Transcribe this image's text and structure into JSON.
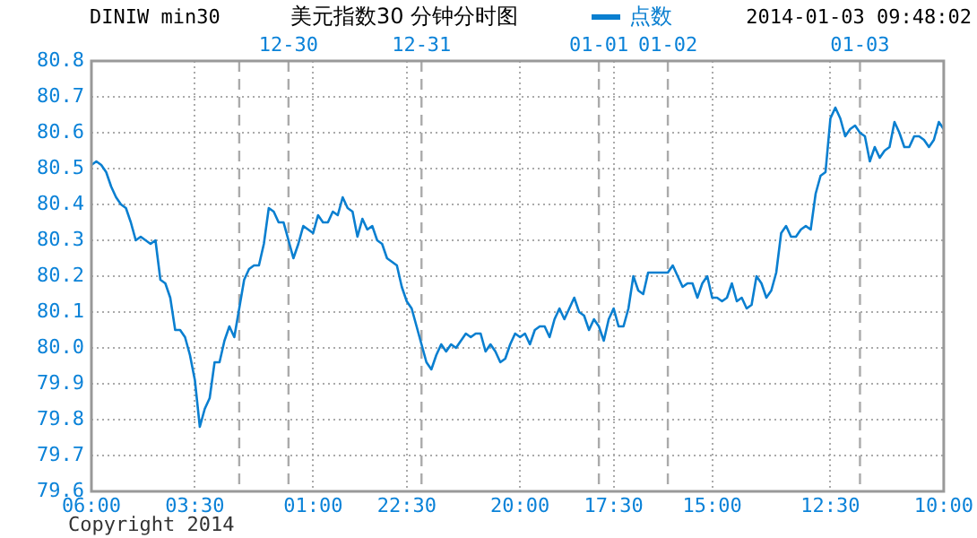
{
  "chart_data": {
    "type": "line",
    "title": "美元指数30  分钟分时图",
    "subtitle": "DINIW min30",
    "legend": "top",
    "grid": true,
    "marker": "none",
    "line_style": "solid",
    "categories": [
      "06:00",
      null,
      null,
      null,
      null,
      null,
      null,
      null,
      null,
      null,
      null,
      null,
      null,
      null,
      null,
      null,
      null,
      null,
      null,
      null,
      null,
      "03:30",
      null,
      null,
      null,
      null,
      null,
      null,
      null,
      null,
      null,
      null,
      null,
      null,
      null,
      null,
      null,
      null,
      null,
      null,
      null,
      null,
      null,
      null,
      null,
      "01:00",
      null,
      null,
      null,
      null,
      null,
      null,
      null,
      null,
      null,
      null,
      null,
      null,
      null,
      null,
      null,
      null,
      null,
      null,
      "22:30",
      null,
      null,
      null,
      null,
      null,
      null,
      null,
      null,
      null,
      null,
      null,
      null,
      null,
      null,
      null,
      null,
      null,
      null,
      null,
      null,
      null,
      null,
      "20:00",
      null,
      null,
      null,
      null,
      null,
      null,
      null,
      null,
      null,
      null,
      null,
      null,
      null,
      null,
      null,
      null,
      null,
      null,
      "17:30",
      null,
      null,
      null,
      null,
      null,
      null,
      null,
      null,
      null,
      null,
      null,
      null,
      null,
      null,
      null,
      null,
      null,
      null,
      null,
      "15:00",
      null,
      null,
      null,
      null,
      null,
      null,
      null,
      null,
      null,
      null,
      null,
      null,
      null,
      null,
      null,
      null,
      null,
      null,
      null,
      null,
      null,
      null,
      null,
      "12:30",
      null,
      null,
      null,
      null,
      null,
      null,
      null,
      null,
      null,
      null,
      null,
      null,
      null,
      null,
      null,
      null,
      null,
      null,
      null,
      null,
      null,
      null,
      "10:00"
    ],
    "annotations": [
      "2014-01-03 09:48:02",
      "Copyright 2014",
      "12-30",
      "12-31",
      "01-01",
      "01-02",
      "01-03"
    ],
    "ylim": [
      79.6,
      80.8
    ],
    "yticks": [
      {
        "value": 79.6,
        "label": "79.6"
      },
      {
        "value": 79.7,
        "label": "79.7"
      },
      {
        "value": 79.8,
        "label": "79.8"
      },
      {
        "value": 79.9,
        "label": "79.9"
      },
      {
        "value": 80,
        "label": "80.0"
      },
      {
        "value": 80.1,
        "label": "80.1"
      },
      {
        "value": 80.2,
        "label": "80.2"
      },
      {
        "value": 80.3,
        "label": "80.3"
      },
      {
        "value": 80.4,
        "label": "80.4"
      },
      {
        "value": 80.5,
        "label": "80.5"
      },
      {
        "value": 80.6,
        "label": "80.6"
      },
      {
        "value": 80.7,
        "label": "80.7"
      },
      {
        "value": 80.8,
        "label": "80.8"
      }
    ],
    "series": [
      {
        "name": "点数",
        "color": "#0a7fd0",
        "values": [
          80.51,
          80.52,
          80.51,
          80.49,
          80.45,
          80.42,
          80.4,
          80.39,
          80.35,
          80.3,
          80.31,
          80.3,
          80.29,
          80.3,
          80.19,
          80.18,
          80.14,
          80.05,
          80.05,
          80.03,
          79.98,
          79.91,
          79.78,
          79.83,
          79.86,
          79.96,
          79.96,
          80.02,
          80.06,
          80.03,
          80.11,
          80.19,
          80.22,
          80.23,
          80.23,
          80.29,
          80.39,
          80.38,
          80.35,
          80.35,
          80.3,
          80.25,
          80.29,
          80.34,
          80.33,
          80.32,
          80.37,
          80.35,
          80.35,
          80.38,
          80.37,
          80.42,
          80.39,
          80.38,
          80.31,
          80.36,
          80.33,
          80.34,
          80.3,
          80.29,
          80.25,
          80.24,
          80.23,
          80.17,
          80.13,
          80.11,
          80.06,
          80.01,
          79.96,
          79.94,
          79.98,
          80.01,
          79.99,
          80.01,
          80.0,
          80.02,
          80.04,
          80.03,
          80.04,
          80.04,
          79.99,
          80.01,
          79.99,
          79.96,
          79.97,
          80.01,
          80.04,
          80.03,
          80.04,
          80.01,
          80.05,
          80.06,
          80.06,
          80.03,
          80.08,
          80.11,
          80.08,
          80.11,
          80.14,
          80.1,
          80.09,
          80.05,
          80.08,
          80.06,
          80.02,
          80.08,
          80.11,
          80.06,
          80.06,
          80.11,
          80.2,
          80.16,
          80.15,
          80.21,
          80.21,
          80.21,
          80.21,
          80.21,
          80.23,
          80.2,
          80.17,
          80.18,
          80.18,
          80.14,
          80.18,
          80.2,
          80.14,
          80.14,
          80.13,
          80.14,
          80.18,
          80.13,
          80.14,
          80.11,
          80.12,
          80.2,
          80.18,
          80.14,
          80.16,
          80.21,
          80.32,
          80.34,
          80.31,
          80.31,
          80.33,
          80.34,
          80.33,
          80.43,
          80.48,
          80.49,
          80.64,
          80.67,
          80.64,
          80.59,
          80.61,
          80.62,
          80.6,
          80.59,
          80.52,
          80.56,
          80.53,
          80.55,
          80.56,
          80.63,
          80.6,
          80.56,
          80.56,
          80.59,
          80.59,
          80.58,
          80.56,
          80.58,
          80.63,
          80.61
        ]
      }
    ]
  }
}
